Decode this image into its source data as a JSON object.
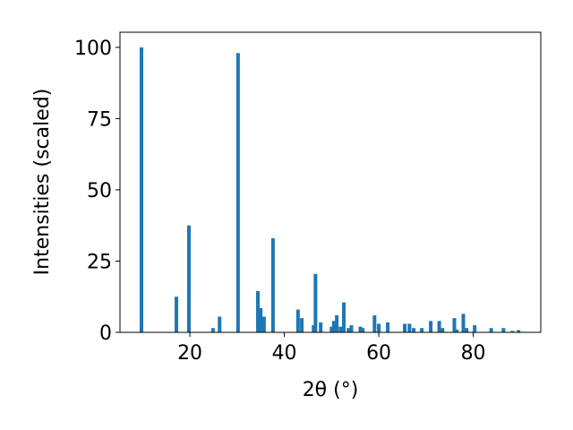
{
  "chart_data": {
    "type": "bar",
    "x": [
      9.75,
      17.15,
      19.8,
      24.9,
      26.3,
      30.2,
      34.4,
      35.0,
      35.7,
      37.6,
      42.9,
      43.7,
      46.2,
      46.6,
      47.7,
      50.0,
      50.5,
      51.1,
      51.9,
      52.6,
      53.6,
      54.2,
      56.1,
      56.6,
      59.1,
      60.0,
      61.9,
      65.5,
      66.5,
      67.4,
      69.1,
      71.0,
      72.8,
      73.5,
      76.0,
      76.5,
      77.9,
      78.6,
      80.3,
      83.8,
      86.4,
      88.3,
      89.6
    ],
    "values": [
      100,
      12.5,
      37.5,
      1.5,
      5.5,
      98,
      14.5,
      8.5,
      5.5,
      33,
      8,
      5,
      2.5,
      20.5,
      3.5,
      2,
      4,
      6,
      2,
      10.5,
      1.5,
      2.5,
      2,
      1.5,
      6,
      3,
      3.5,
      3,
      3,
      1.5,
      1.5,
      4,
      4,
      1.5,
      5,
      1,
      6.5,
      1.5,
      2.5,
      1.5,
      1.5,
      0.5,
      0.8
    ],
    "color": "#1f77b4",
    "xlabel": "2θ (°)",
    "ylabel": "Intensities (scaled)",
    "xlim": [
      5.2,
      94.3
    ],
    "xticks": [
      20,
      40,
      60,
      80
    ],
    "ylim": [
      0,
      105.3
    ],
    "yticks": [
      0,
      25,
      50,
      75,
      100
    ]
  }
}
